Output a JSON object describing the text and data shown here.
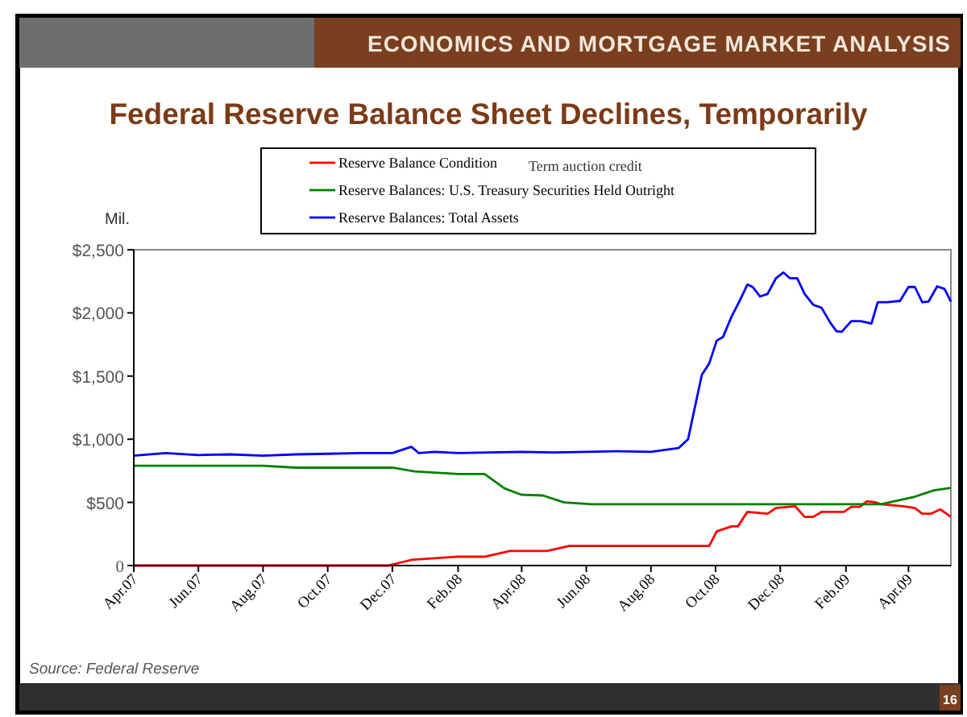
{
  "chart_data": {
    "type": "line",
    "title": "Federal Reserve Balance Sheet Declines, Temporarily",
    "subtitle": "ECONOMICS AND MORTGAGE MARKET ANALYSIS",
    "ylabel": "Mil.",
    "annotations": [
      "Term auction credit",
      "Source: Federal Reserve",
      "16"
    ],
    "legend": "top",
    "grid": false,
    "marker": "none",
    "line_style": "solid",
    "xlim": [
      "2007-04-01",
      "2009-05-11"
    ],
    "xticks": [
      {
        "value": "2007-04-01",
        "label": "Apr.07"
      },
      {
        "value": "2007-06-01",
        "label": "Jun.07"
      },
      {
        "value": "2007-08-01",
        "label": "Aug.07"
      },
      {
        "value": "2007-10-01",
        "label": "Oct.07"
      },
      {
        "value": "2007-12-01",
        "label": "Dec.07"
      },
      {
        "value": "2008-02-01",
        "label": "Feb.08"
      },
      {
        "value": "2008-04-01",
        "label": "Apr.08"
      },
      {
        "value": "2008-06-01",
        "label": "Jun.08"
      },
      {
        "value": "2008-08-01",
        "label": "Aug.08"
      },
      {
        "value": "2008-10-01",
        "label": "Oct.08"
      },
      {
        "value": "2008-12-01",
        "label": "Dec.08"
      },
      {
        "value": "2009-02-01",
        "label": "Feb.09"
      },
      {
        "value": "2009-04-01",
        "label": "Apr.09"
      }
    ],
    "ylim": [
      0,
      2500
    ],
    "yticks": [
      {
        "value": 0,
        "label": "0"
      },
      {
        "value": 500,
        "label": "$500"
      },
      {
        "value": 1000,
        "label": "$1,000"
      },
      {
        "value": 1500,
        "label": "$1,500"
      },
      {
        "value": 2000,
        "label": "$2,000"
      },
      {
        "value": 2500,
        "label": "$2,500"
      }
    ],
    "series": [
      {
        "name": "Reserve Balance Condition",
        "color": "#ff0000",
        "x": [
          "2007-04-01",
          "2007-08-01",
          "2007-11-27",
          "2007-12-19",
          "2008-01-30",
          "2008-02-26",
          "2008-03-21",
          "2008-04-25",
          "2008-05-16",
          "2008-09-25",
          "2008-10-02",
          "2008-10-16",
          "2008-10-22",
          "2008-10-31",
          "2008-11-19",
          "2008-11-27",
          "2008-12-15",
          "2008-12-24",
          "2009-01-01",
          "2009-01-09",
          "2009-01-30",
          "2009-02-06",
          "2009-02-14",
          "2009-02-21",
          "2009-03-01",
          "2009-03-06",
          "2009-03-27",
          "2009-04-07",
          "2009-04-14",
          "2009-04-22",
          "2009-05-01",
          "2009-05-11"
        ],
        "values": [
          0,
          0,
          0,
          45,
          70,
          70,
          115,
          115,
          155,
          155,
          270,
          310,
          310,
          425,
          410,
          455,
          470,
          385,
          385,
          425,
          425,
          465,
          465,
          510,
          500,
          485,
          470,
          455,
          410,
          410,
          445,
          385
        ]
      },
      {
        "name": "Reserve Balances: U.S. Treasury Securities Held Outright",
        "color": "#008000",
        "x": [
          "2007-04-01",
          "2007-08-01",
          "2007-09-01",
          "2007-12-01",
          "2007-12-22",
          "2008-02-01",
          "2008-02-26",
          "2008-03-16",
          "2008-04-01",
          "2008-04-21",
          "2008-05-11",
          "2008-06-06",
          "2008-10-01",
          "2009-01-01",
          "2009-03-06",
          "2009-04-07",
          "2009-04-25",
          "2009-05-11"
        ],
        "values": [
          790,
          790,
          775,
          775,
          745,
          725,
          725,
          610,
          560,
          555,
          500,
          485,
          485,
          485,
          485,
          545,
          595,
          615
        ]
      },
      {
        "name": "Reserve Balances: Total Assets",
        "color": "#0000ff",
        "x": [
          "2007-04-01",
          "2007-05-01",
          "2007-06-01",
          "2007-07-01",
          "2007-08-01",
          "2007-09-01",
          "2007-10-01",
          "2007-11-01",
          "2007-12-01",
          "2007-12-19",
          "2007-12-26",
          "2008-01-10",
          "2008-02-01",
          "2008-03-01",
          "2008-04-01",
          "2008-05-01",
          "2008-06-01",
          "2008-07-01",
          "2008-08-01",
          "2008-08-27",
          "2008-09-05",
          "2008-09-18",
          "2008-09-25",
          "2008-10-02",
          "2008-10-08",
          "2008-10-16",
          "2008-10-24",
          "2008-10-31",
          "2008-11-05",
          "2008-11-12",
          "2008-11-19",
          "2008-11-27",
          "2008-12-04",
          "2008-12-10",
          "2008-12-17",
          "2008-12-24",
          "2009-01-01",
          "2009-01-09",
          "2009-01-17",
          "2009-01-23",
          "2009-01-28",
          "2009-02-06",
          "2009-02-15",
          "2009-02-25",
          "2009-03-03",
          "2009-03-12",
          "2009-03-24",
          "2009-04-01",
          "2009-04-07",
          "2009-04-14",
          "2009-04-20",
          "2009-04-28",
          "2009-05-05",
          "2009-05-11"
        ],
        "values": [
          870,
          890,
          875,
          880,
          870,
          880,
          885,
          890,
          890,
          940,
          890,
          900,
          890,
          895,
          900,
          895,
          900,
          905,
          900,
          930,
          1000,
          1510,
          1600,
          1780,
          1810,
          1970,
          2100,
          2225,
          2205,
          2130,
          2150,
          2275,
          2320,
          2275,
          2275,
          2150,
          2065,
          2040,
          1925,
          1855,
          1850,
          1935,
          1935,
          1915,
          2085,
          2085,
          2095,
          2205,
          2205,
          2085,
          2090,
          2210,
          2190,
          2090
        ]
      }
    ]
  }
}
